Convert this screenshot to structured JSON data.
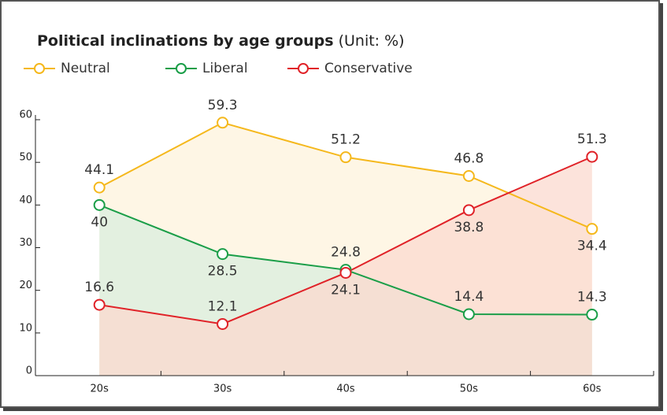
{
  "chart_data": {
    "type": "line",
    "title": "Political inclinations by age groups",
    "subtitle": "(Unit: %)",
    "categories": [
      "20s",
      "30s",
      "40s",
      "50s",
      "60s"
    ],
    "series": [
      {
        "name": "Neutral",
        "color": "#f5b81c",
        "area_color": "#fdf3dc",
        "values": [
          44.1,
          59.3,
          51.2,
          46.8,
          34.4
        ]
      },
      {
        "name": "Liberal",
        "color": "#1a9e48",
        "area_color": "#d9eedd",
        "values": [
          40,
          28.5,
          24.8,
          14.4,
          14.3
        ]
      },
      {
        "name": "Conservative",
        "color": "#e02228",
        "area_color": "#fbd9cf",
        "values": [
          16.6,
          12.1,
          24.1,
          38.8,
          51.3
        ]
      }
    ],
    "ylim": [
      0,
      60
    ],
    "yticks": [
      0,
      10,
      20,
      30,
      40,
      50,
      60
    ]
  }
}
